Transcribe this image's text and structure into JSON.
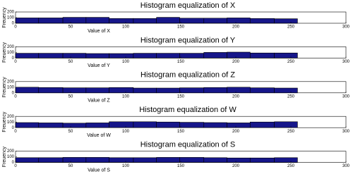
{
  "chart_data": [
    {
      "type": "histogram",
      "title": "Histogram equalization of X",
      "xlabel": "Value of X",
      "ylabel": "Freuency",
      "bins": [
        0,
        21,
        43,
        64,
        85,
        107,
        128,
        149,
        171,
        192,
        213,
        235,
        256
      ],
      "values": [
        95,
        95,
        105,
        105,
        85,
        85,
        105,
        90,
        90,
        95,
        85,
        80
      ],
      "color": "#16168a",
      "xlim": [
        0,
        300
      ],
      "xticks": [
        0,
        50,
        100,
        150,
        200,
        250,
        300
      ],
      "ylim": [
        0,
        200
      ],
      "yticks": [
        0,
        100,
        200
      ]
    },
    {
      "type": "histogram",
      "title": "Histogram equalization of Y",
      "xlabel": "Value of Y",
      "ylabel": "Freuency",
      "bins": [
        0,
        21,
        43,
        64,
        85,
        107,
        128,
        149,
        171,
        192,
        213,
        235,
        256
      ],
      "values": [
        85,
        85,
        85,
        80,
        80,
        85,
        85,
        85,
        100,
        105,
        90,
        90
      ],
      "color": "#16168a",
      "xlim": [
        0,
        300
      ],
      "xticks": [
        0,
        50,
        100,
        150,
        200,
        250,
        300
      ],
      "ylim": [
        0,
        200
      ],
      "yticks": [
        0,
        100,
        200
      ]
    },
    {
      "type": "histogram",
      "title": "Histogram equalization of Z",
      "xlabel": "Value of Z",
      "ylabel": "Freuency",
      "bins": [
        0,
        21,
        43,
        64,
        85,
        107,
        128,
        149,
        171,
        192,
        213,
        235,
        256
      ],
      "values": [
        100,
        95,
        90,
        90,
        95,
        85,
        85,
        90,
        95,
        100,
        90,
        85
      ],
      "color": "#16168a",
      "xlim": [
        0,
        300
      ],
      "xticks": [
        0,
        50,
        100,
        150,
        200,
        250,
        300
      ],
      "ylim": [
        0,
        200
      ],
      "yticks": [
        0,
        100,
        200
      ]
    },
    {
      "type": "histogram",
      "title": "Histogram equalization of W",
      "xlabel": "Value of W",
      "ylabel": "Freuency",
      "bins": [
        0,
        21,
        43,
        64,
        85,
        107,
        128,
        149,
        171,
        192,
        213,
        235,
        256
      ],
      "values": [
        90,
        85,
        80,
        85,
        105,
        105,
        100,
        95,
        90,
        85,
        100,
        105
      ],
      "color": "#16168a",
      "xlim": [
        0,
        300
      ],
      "xticks": [
        0,
        50,
        100,
        150,
        200,
        250,
        300
      ],
      "ylim": [
        0,
        200
      ],
      "yticks": [
        0,
        100,
        200
      ]
    },
    {
      "type": "histogram",
      "title": "Histogram equalization of S",
      "xlabel": "Value of S",
      "ylabel": "Freuency",
      "bins": [
        0,
        21,
        43,
        64,
        85,
        107,
        128,
        149,
        171,
        192,
        213,
        235,
        256
      ],
      "values": [
        85,
        85,
        90,
        90,
        85,
        85,
        90,
        90,
        85,
        80,
        80,
        85
      ],
      "color": "#16168a",
      "xlim": [
        0,
        300
      ],
      "xticks": [
        0,
        50,
        100,
        150,
        200,
        250,
        300
      ],
      "ylim": [
        0,
        200
      ],
      "yticks": [
        0,
        100,
        200
      ]
    }
  ]
}
